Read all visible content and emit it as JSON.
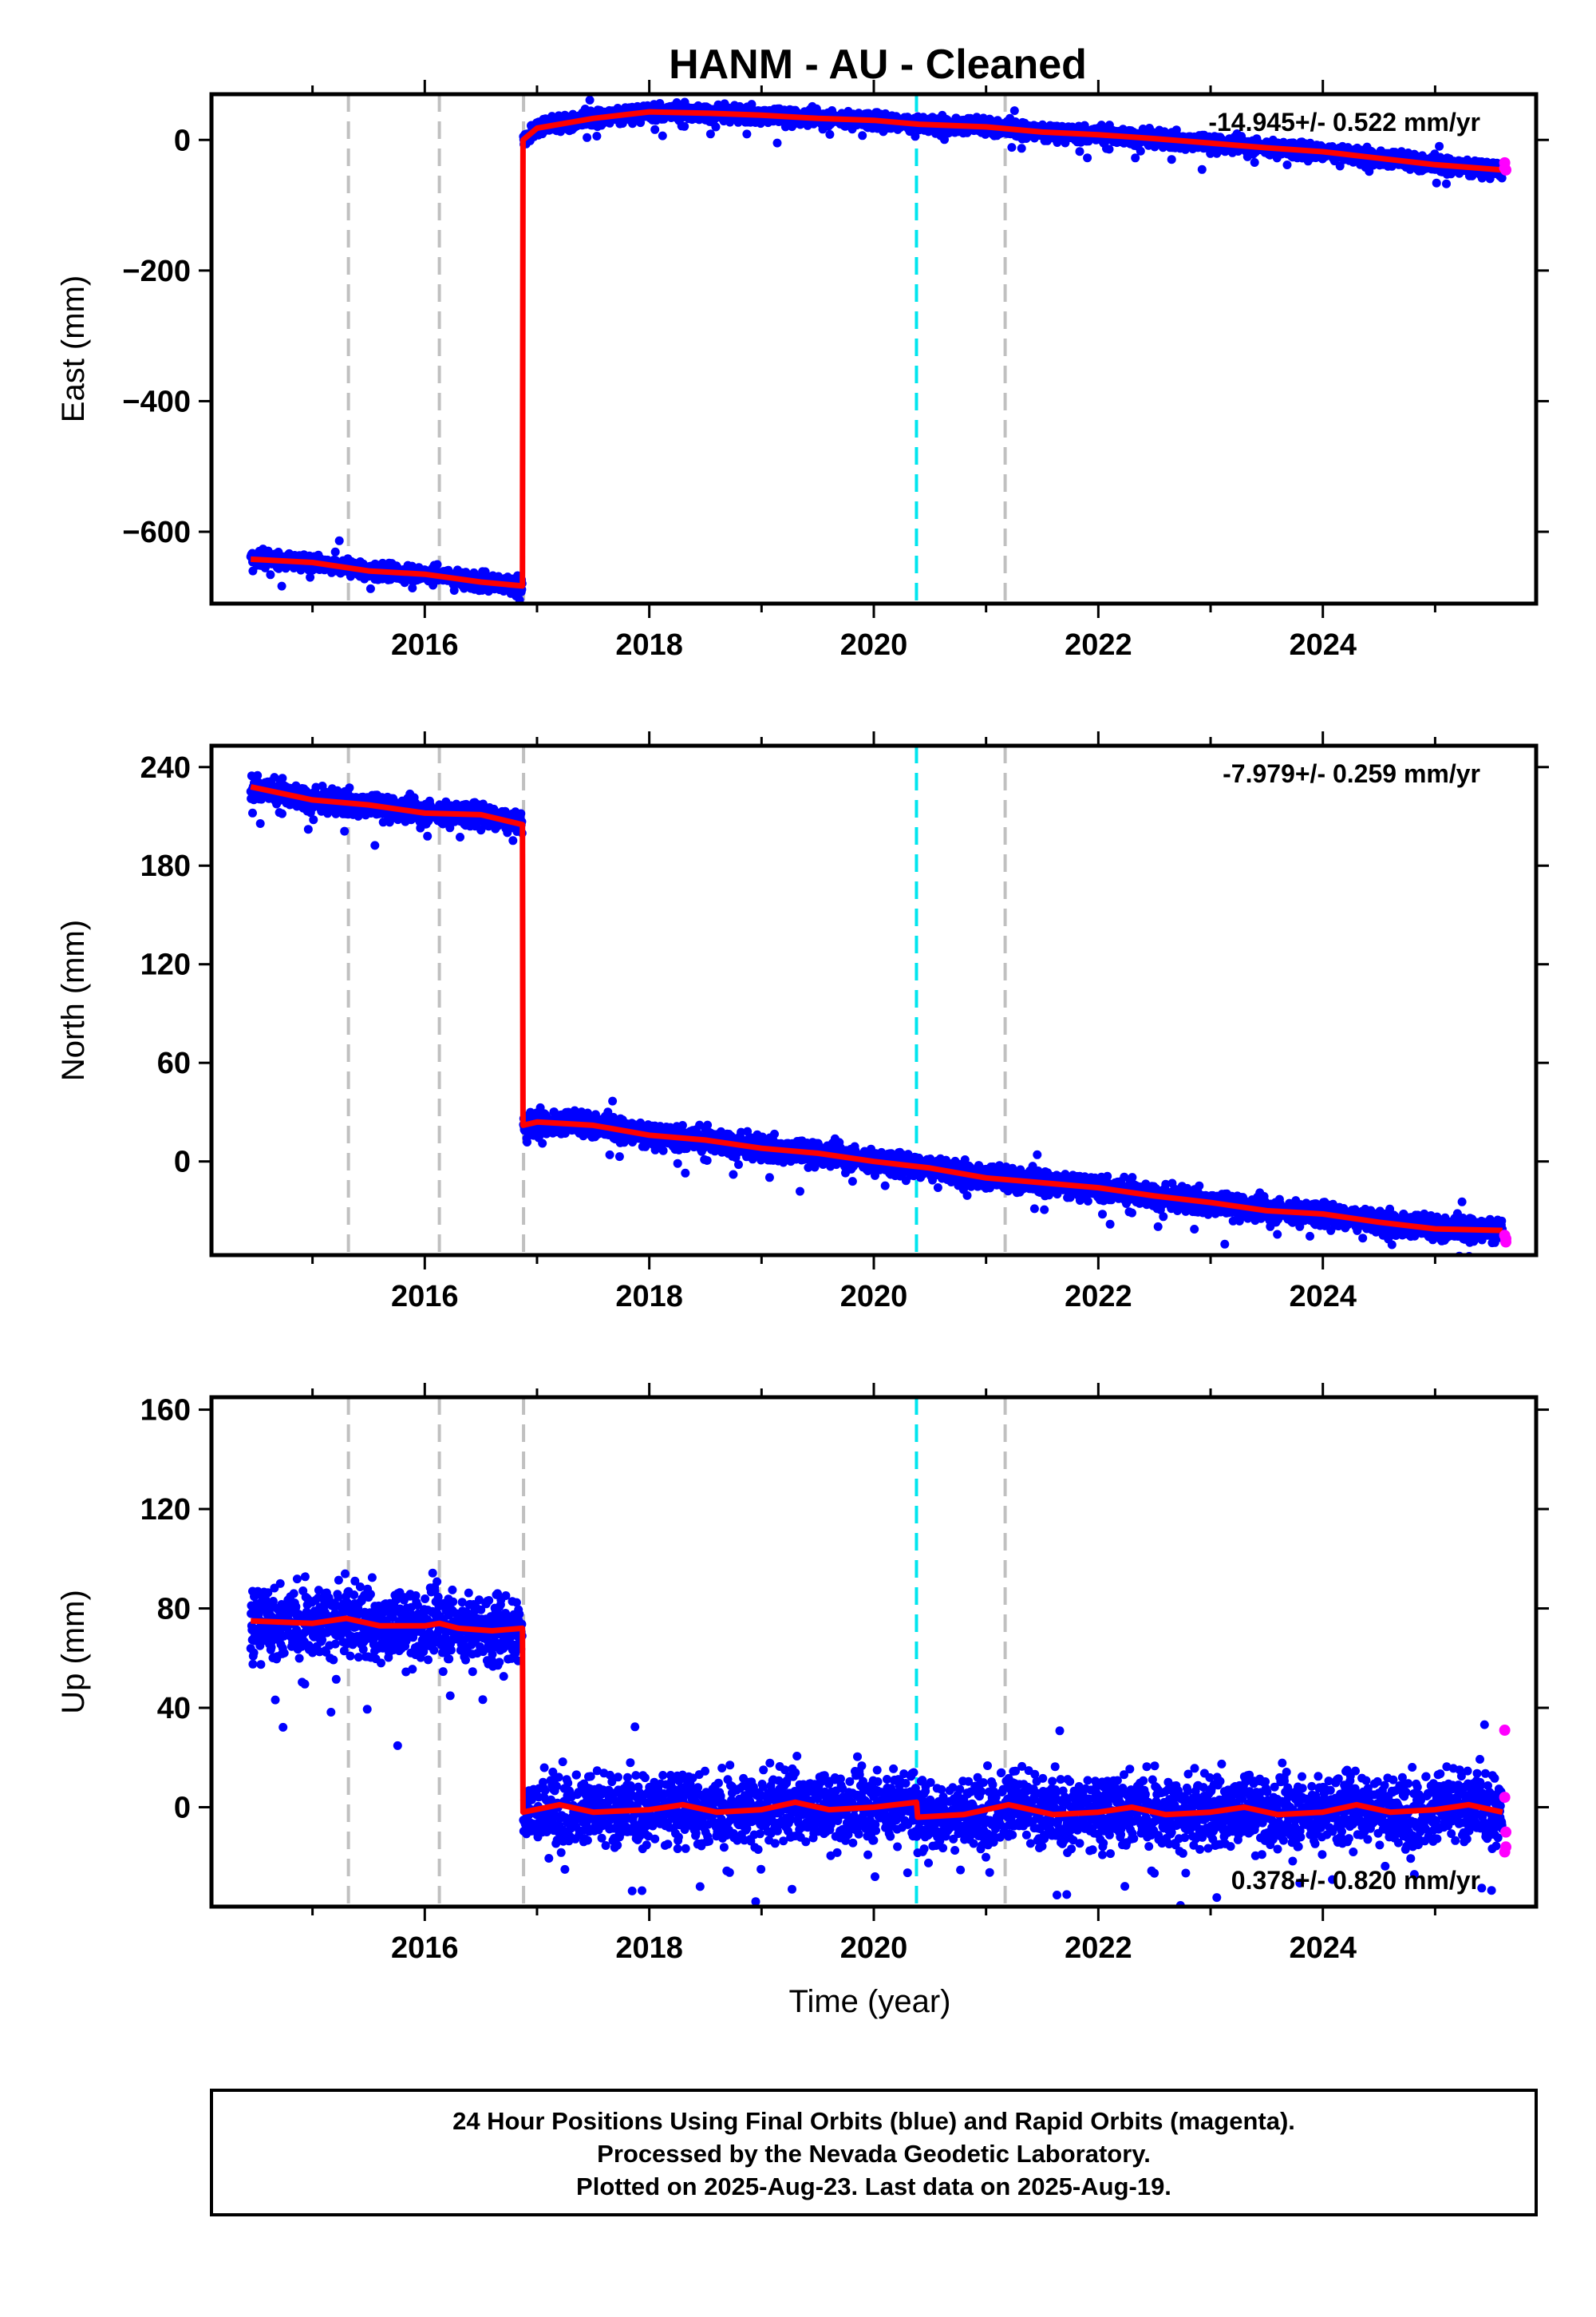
{
  "title": "HANM  - AU - Cleaned",
  "footer": {
    "line1": "24 Hour Positions Using Final Orbits (blue) and Rapid Orbits (magenta).",
    "line2": "Processed by the Nevada Geodetic Laboratory.",
    "line3": "Plotted on 2025-Aug-23. Last data on 2025-Aug-19."
  },
  "colors": {
    "final_orbits": "#0000ff",
    "rapid_orbits": "#ff00ff",
    "model_fit": "#ff0000",
    "event_line": "#c0c0c0",
    "cyan_event": "#00e5ee"
  },
  "chart_data": [
    {
      "type": "scatter",
      "component": "east",
      "ylabel": "East (mm)",
      "xlabel": "",
      "rate_text": "-14.945+/- 0.522 mm/yr",
      "rate_position": "top-right",
      "xlim": [
        2014.1,
        2025.9
      ],
      "ylim": [
        -710,
        70
      ],
      "xticks": [
        2016,
        2018,
        2020,
        2022,
        2024
      ],
      "yticks": [
        0,
        -200,
        -400,
        -600
      ],
      "grid": false,
      "event_lines": [
        2015.32,
        2016.13,
        2016.88,
        2021.17
      ],
      "cyan_lines": [
        2020.38
      ],
      "fit_knots": [
        [
          2014.45,
          -642
        ],
        [
          2015.0,
          -647
        ],
        [
          2015.5,
          -660
        ],
        [
          2016.0,
          -665
        ],
        [
          2016.5,
          -677
        ],
        [
          2016.87,
          -683
        ],
        [
          2016.875,
          0
        ],
        [
          2017.0,
          18
        ],
        [
          2017.5,
          33
        ],
        [
          2018.0,
          43
        ],
        [
          2018.5,
          41
        ],
        [
          2019.0,
          38
        ],
        [
          2019.5,
          33
        ],
        [
          2020.0,
          30
        ],
        [
          2020.4,
          24
        ],
        [
          2021.0,
          20
        ],
        [
          2021.5,
          12
        ],
        [
          2022.0,
          8
        ],
        [
          2022.5,
          2
        ],
        [
          2023.0,
          -5
        ],
        [
          2023.5,
          -12
        ],
        [
          2024.0,
          -18
        ],
        [
          2024.5,
          -28
        ],
        [
          2025.0,
          -38
        ],
        [
          2025.6,
          -46
        ]
      ],
      "noise_mm": 6,
      "rapid_points": [
        [
          2025.62,
          -35
        ],
        [
          2025.62,
          -43
        ],
        [
          2025.63,
          -46
        ]
      ]
    },
    {
      "type": "scatter",
      "component": "north",
      "ylabel": "North (mm)",
      "xlabel": "",
      "rate_text": "-7.979+/- 0.259 mm/yr",
      "rate_position": "top-right",
      "xlim": [
        2014.1,
        2025.9
      ],
      "ylim": [
        -57,
        253
      ],
      "xticks": [
        2016,
        2018,
        2020,
        2022,
        2024
      ],
      "yticks": [
        240,
        180,
        120,
        60,
        0
      ],
      "grid": false,
      "event_lines": [
        2015.32,
        2016.13,
        2016.88,
        2021.17
      ],
      "cyan_lines": [
        2020.38
      ],
      "fit_knots": [
        [
          2014.45,
          228
        ],
        [
          2015.0,
          220
        ],
        [
          2015.5,
          217
        ],
        [
          2016.0,
          212
        ],
        [
          2016.5,
          211
        ],
        [
          2016.87,
          205
        ],
        [
          2016.875,
          22
        ],
        [
          2017.0,
          24
        ],
        [
          2017.5,
          22
        ],
        [
          2018.0,
          16
        ],
        [
          2018.5,
          13
        ],
        [
          2019.0,
          8
        ],
        [
          2019.5,
          5
        ],
        [
          2020.0,
          0
        ],
        [
          2020.5,
          -4
        ],
        [
          2021.0,
          -10
        ],
        [
          2021.5,
          -13
        ],
        [
          2022.0,
          -16
        ],
        [
          2022.5,
          -21
        ],
        [
          2023.0,
          -25
        ],
        [
          2023.5,
          -30
        ],
        [
          2024.0,
          -32
        ],
        [
          2024.5,
          -37
        ],
        [
          2025.0,
          -41
        ],
        [
          2025.6,
          -42
        ]
      ],
      "noise_mm": 3.5,
      "rapid_points": [
        [
          2025.62,
          -45
        ],
        [
          2025.63,
          -47
        ],
        [
          2025.63,
          -49
        ]
      ]
    },
    {
      "type": "scatter",
      "component": "up",
      "ylabel": "Up (mm)",
      "xlabel": "Time (year)",
      "rate_text": "0.378+/- 0.820 mm/yr",
      "rate_position": "bottom-right",
      "xlim": [
        2014.1,
        2025.9
      ],
      "ylim": [
        -40,
        165
      ],
      "xticks": [
        2016,
        2018,
        2020,
        2022,
        2024
      ],
      "yticks": [
        160,
        120,
        80,
        40,
        0
      ],
      "grid": false,
      "event_lines": [
        2015.32,
        2016.13,
        2016.88,
        2021.17
      ],
      "cyan_lines": [
        2020.38
      ],
      "fit_knots": [
        [
          2014.45,
          75
        ],
        [
          2015.0,
          74
        ],
        [
          2015.3,
          76
        ],
        [
          2015.6,
          73
        ],
        [
          2016.0,
          73
        ],
        [
          2016.13,
          74
        ],
        [
          2016.3,
          72
        ],
        [
          2016.6,
          71
        ],
        [
          2016.87,
          72
        ],
        [
          2016.875,
          -2
        ],
        [
          2017.2,
          1
        ],
        [
          2017.5,
          -2
        ],
        [
          2018.0,
          -1
        ],
        [
          2018.3,
          1
        ],
        [
          2018.6,
          -2
        ],
        [
          2019.0,
          -1
        ],
        [
          2019.3,
          2
        ],
        [
          2019.6,
          -1
        ],
        [
          2020.0,
          0
        ],
        [
          2020.38,
          2
        ],
        [
          2020.39,
          -4
        ],
        [
          2020.8,
          -3
        ],
        [
          2021.2,
          1
        ],
        [
          2021.6,
          -3
        ],
        [
          2022.0,
          -2
        ],
        [
          2022.3,
          0
        ],
        [
          2022.6,
          -3
        ],
        [
          2023.0,
          -2
        ],
        [
          2023.3,
          0
        ],
        [
          2023.6,
          -3
        ],
        [
          2024.0,
          -2
        ],
        [
          2024.3,
          1
        ],
        [
          2024.6,
          -2
        ],
        [
          2025.0,
          -1
        ],
        [
          2025.3,
          1
        ],
        [
          2025.6,
          -2
        ]
      ],
      "noise_mm": 7,
      "rapid_points": [
        [
          2025.62,
          31
        ],
        [
          2025.62,
          4
        ],
        [
          2025.63,
          -10
        ],
        [
          2025.63,
          -16
        ],
        [
          2025.62,
          -18
        ]
      ]
    }
  ]
}
